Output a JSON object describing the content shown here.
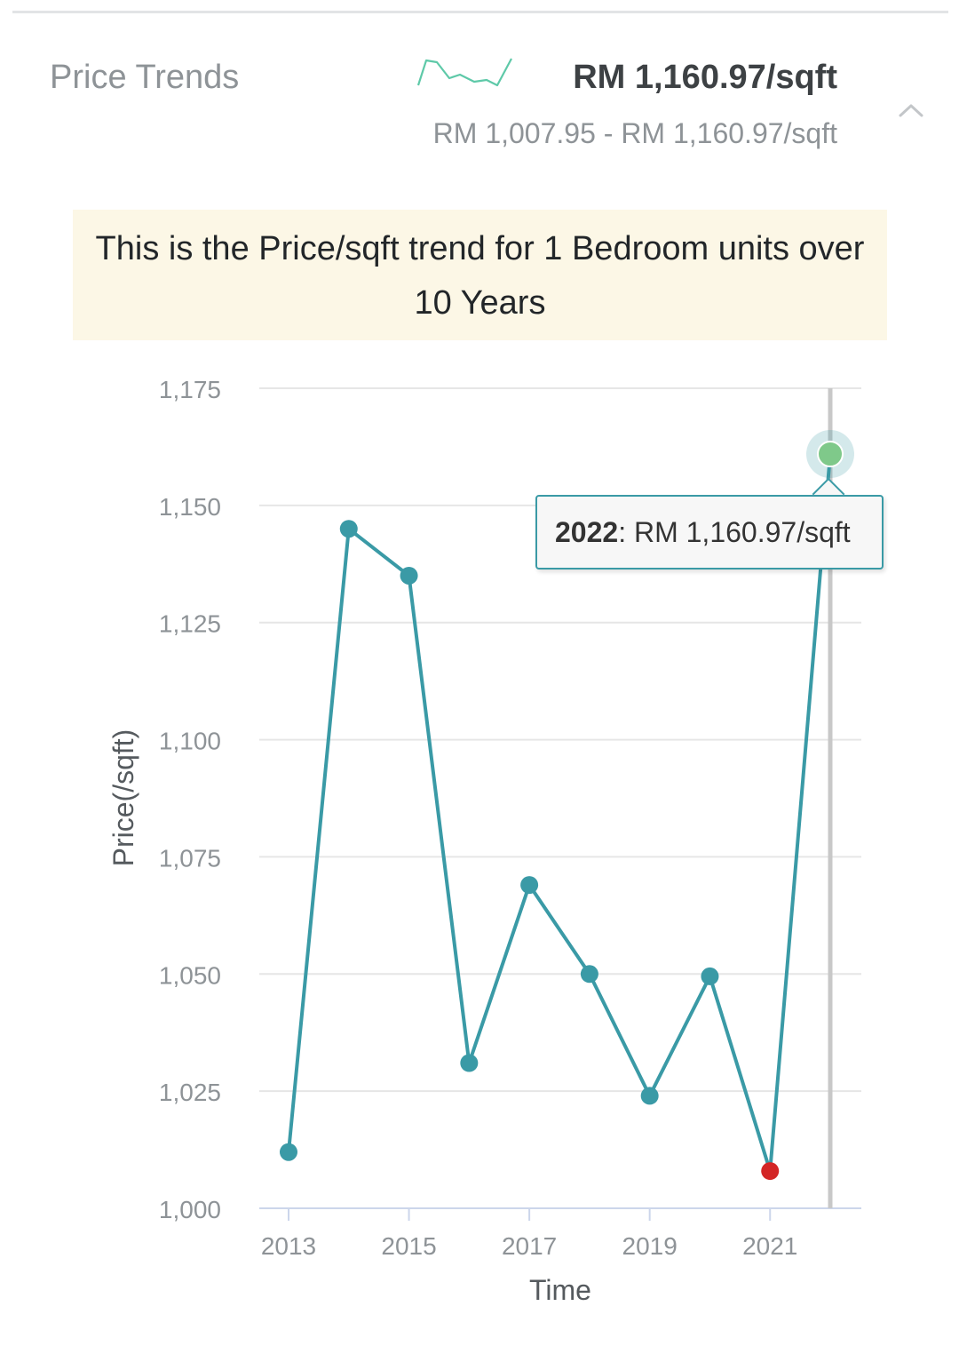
{
  "header": {
    "title": "Price Trends",
    "current_price": "RM 1,160.97/sqft",
    "price_range": "RM 1,007.95 - RM 1,160.97/sqft",
    "trend_icon": "sparkline-icon",
    "collapse_icon": "chevron-up-icon"
  },
  "notice": {
    "text": "This is the Price/sqft trend for 1 Bedroom units over 10 Years"
  },
  "tooltip": {
    "year": "2022",
    "value_text": ": RM 1,160.97/sqft"
  },
  "colors": {
    "line": "#3a9aa6",
    "min_point": "#d32626",
    "max_point": "#7fc98a",
    "notice_bg": "#fcf7e6",
    "sparkline": "#5ec9a8"
  },
  "chart_data": {
    "type": "line",
    "title": "",
    "xlabel": "Time",
    "ylabel": "Price(/sqft)",
    "x": [
      2013,
      2014,
      2015,
      2016,
      2017,
      2018,
      2019,
      2020,
      2021,
      2022
    ],
    "values": [
      1012,
      1145,
      1135,
      1031,
      1069,
      1050,
      1024,
      1049.5,
      1007.95,
      1160.97
    ],
    "ylim": [
      1000,
      1175
    ],
    "yticks": [
      1000,
      1025,
      1050,
      1075,
      1100,
      1125,
      1150,
      1175
    ],
    "ytick_labels": [
      "1,000",
      "1,025",
      "1,050",
      "1,075",
      "1,100",
      "1,125",
      "1,150",
      "1,175"
    ],
    "xticks": [
      "2013",
      "2015",
      "2017",
      "2019",
      "2021"
    ],
    "grid": true,
    "highlight": {
      "min_index": 8,
      "max_index": 9,
      "hover_index": 9
    }
  }
}
